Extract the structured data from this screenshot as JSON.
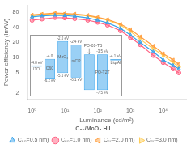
{
  "chart_data": [
    {
      "type": "line",
      "xlabel": "Luminance (cd/m²)",
      "ylabel": "Power efficiency (lm/W)",
      "x": [
        1,
        2,
        5,
        10,
        20,
        50,
        100,
        200,
        500,
        1000,
        2000,
        5000,
        10000,
        20000,
        30000
      ],
      "series": [
        {
          "name": "C₆₀=0.5 nm)",
          "marker": "triangle_up",
          "values": [
            64,
            67,
            69,
            68,
            66,
            61,
            55,
            49,
            38,
            28,
            20,
            13,
            9,
            7,
            6
          ]
        },
        {
          "name": "C₆₀=1.0 nm)",
          "marker": "circle",
          "values": [
            55,
            58,
            62,
            61,
            59,
            55,
            50,
            44,
            34,
            25,
            18,
            11,
            8,
            6,
            5
          ]
        },
        {
          "name": "C₆₀=2.0 nm)",
          "marker": "triangle_left",
          "values": [
            70,
            73,
            76,
            75,
            73,
            69,
            63,
            57,
            46,
            36,
            26,
            17,
            12,
            9,
            7.5
          ]
        },
        {
          "name": "C₆₀=3.0 nm)",
          "marker": "triangle_right",
          "values": [
            67,
            71,
            74,
            73,
            71,
            67,
            61,
            55,
            44,
            33,
            23,
            15,
            11,
            8,
            6.5
          ]
        }
      ],
      "log": true,
      "xlim": [
        0.7,
        50000
      ],
      "ylim": [
        1.5,
        110
      ],
      "xticks": [
        {
          "value": 1,
          "label": "10⁰"
        },
        {
          "value": 10,
          "label": "10¹"
        },
        {
          "value": 100,
          "label": "10²"
        },
        {
          "value": 1000,
          "label": "10³"
        },
        {
          "value": 10000,
          "label": "10⁴"
        }
      ],
      "yticks": [
        2,
        5,
        10,
        20,
        40,
        80
      ],
      "grid": false,
      "legend": "bottom",
      "legend_title": "C₆₀/MoO₃ HIL"
    },
    {
      "type": "bar",
      "categories": [
        "ITO",
        "C60",
        "MoO₃",
        "mCP",
        "PO-01-TB",
        "PO-T2T",
        "Liq/Al"
      ],
      "values": [
        -4.8,
        [
          -6.2,
          -4.0
        ],
        [
          -5.6,
          -2.0
        ],
        [
          -6.1,
          -2.4
        ],
        [
          -7.5,
          -3.5
        ],
        [
          -7.5,
          -3.5
        ],
        -4.1
      ],
      "value_labels": [
        "-4.8 eV",
        [
          "-6.2 eV",
          "-4.0"
        ],
        [
          "-5.6 eV",
          "-2.0 eV"
        ],
        [
          "-6.1 eV",
          "-2.4 eV"
        ],
        null,
        [
          "-7.5 eV",
          "-3.5 eV"
        ],
        "-4.1 eV"
      ],
      "ylim": [
        -8.2,
        -1.3
      ],
      "tick_labels": false,
      "data_labels": true
    }
  ]
}
